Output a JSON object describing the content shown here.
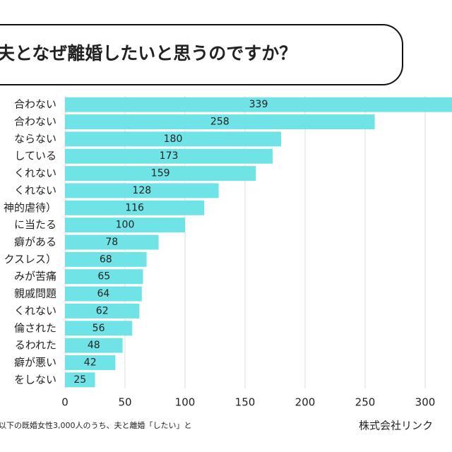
{
  "chart_data": {
    "type": "bar",
    "orientation": "horizontal",
    "title": "夫となぜ離婚したいと思うのですか？",
    "categories": [
      "合わない",
      "合わない",
      "ならない",
      "している",
      "くれない",
      "くれない",
      "神的虐待）",
      "に当たる",
      "癖がある",
      "クスレス）",
      "みが苦痛",
      "親戚問題",
      "くれない",
      "倫された",
      "るわれた",
      "癖が悪い",
      "をしない"
    ],
    "values": [
      339,
      258,
      180,
      173,
      159,
      128,
      116,
      100,
      78,
      68,
      65,
      64,
      62,
      56,
      48,
      42,
      25
    ],
    "color": "#6fe3e6",
    "xlim": [
      0,
      350
    ],
    "xticks": [
      0,
      50,
      100,
      150,
      200,
      250,
      300
    ],
    "grid": true,
    "footnote": "以下の既婚女性3,000人のうち、夫と離婚「したい」と",
    "source": "株式会社リンク"
  }
}
